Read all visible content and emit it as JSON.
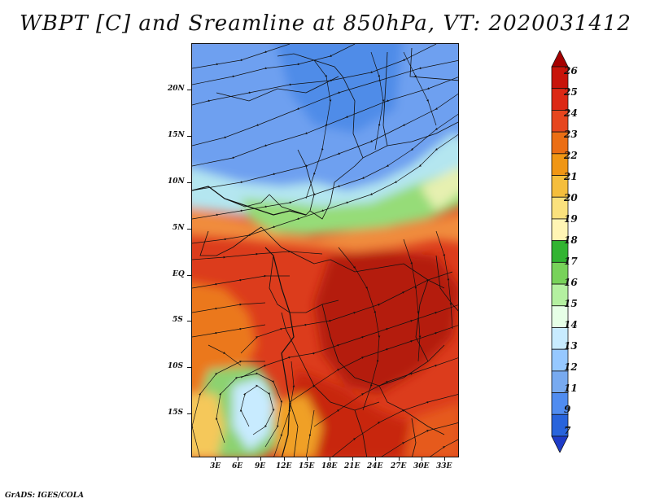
{
  "title": "WBPT [C] and Sreamline at 850hPa, VT: 2020031412",
  "footer": "GrADS: IGES/COLA",
  "map": {
    "variable": "WBPT [C]",
    "level": "850hPa",
    "valid_time": "2020031412",
    "y_ticks": [
      "20N",
      "15N",
      "10N",
      "5N",
      "EQ",
      "5S",
      "10S",
      "15S"
    ],
    "x_ticks": [
      "3E",
      "6E",
      "9E",
      "12E",
      "15E",
      "18E",
      "21E",
      "24E",
      "27E",
      "30E",
      "33E"
    ]
  },
  "colorbar": {
    "levels": [
      "26",
      "25",
      "24",
      "23",
      "22",
      "21",
      "20",
      "19",
      "18",
      "17",
      "16",
      "15",
      "14",
      "13",
      "12",
      "11",
      "9",
      "7"
    ],
    "colors": [
      "#a50000",
      "#c8140a",
      "#dc2814",
      "#e6461e",
      "#eb6e14",
      "#f09614",
      "#f5be3c",
      "#fae17d",
      "#fff5b4",
      "#32b432",
      "#78d25a",
      "#b4f0a0",
      "#e6ffe6",
      "#c8ebff",
      "#96c8ff",
      "#78aaf0",
      "#508cf0",
      "#2864dc",
      "#1e3cc8"
    ]
  }
}
